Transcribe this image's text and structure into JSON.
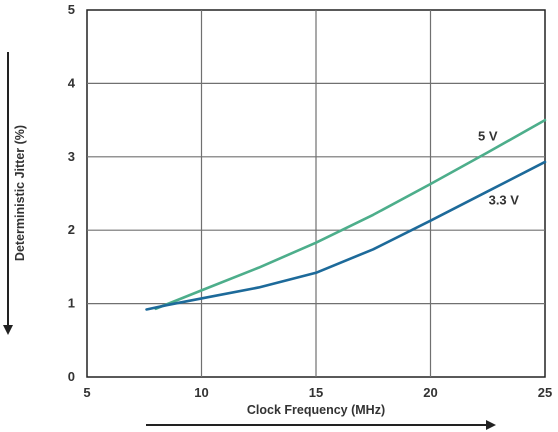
{
  "chart_data": {
    "type": "line",
    "xlabel": "Clock Frequency (MHz)",
    "ylabel": "Deterministic Jitter (%)",
    "xlim": [
      5,
      25
    ],
    "ylim": [
      0,
      5
    ],
    "xticks": [
      5,
      10,
      15,
      20,
      25
    ],
    "yticks": [
      0,
      1,
      2,
      3,
      4,
      5
    ],
    "grid": true,
    "legend": "none",
    "series": [
      {
        "name": "5 V",
        "color": "#4dae8b",
        "x": [
          8,
          10,
          12.5,
          15,
          17.5,
          20,
          22.5,
          25
        ],
        "y": [
          0.93,
          1.18,
          1.49,
          1.83,
          2.21,
          2.63,
          3.06,
          3.5
        ]
      },
      {
        "name": "3.3 V",
        "color": "#1d6a9a",
        "x": [
          7.6,
          8.5,
          10,
          12.5,
          15,
          17.5,
          20,
          22.5,
          25
        ],
        "y": [
          0.92,
          0.98,
          1.07,
          1.22,
          1.42,
          1.74,
          2.13,
          2.53,
          2.93
        ]
      }
    ]
  }
}
